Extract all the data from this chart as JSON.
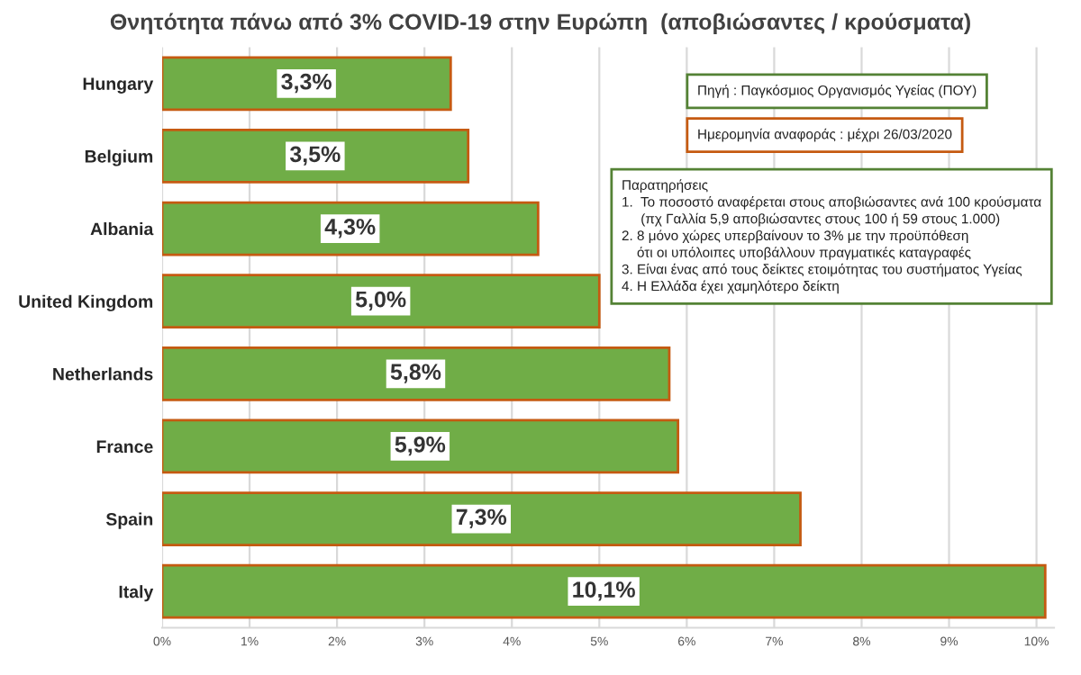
{
  "chart_data": {
    "type": "bar",
    "orientation": "horizontal",
    "title": "Θνητότητα πάνω από 3% COVID-19 στην Ευρώπη  (αποβιώσαντες / κρούσματα)",
    "categories": [
      "Hungary",
      "Belgium",
      "Albania",
      "United Kingdom",
      "Netherlands",
      "France",
      "Spain",
      "Italy"
    ],
    "values": [
      3.3,
      3.5,
      4.3,
      5.0,
      5.8,
      5.9,
      7.3,
      10.1
    ],
    "value_labels": [
      "3,3%",
      "3,5%",
      "4,3%",
      "5,0%",
      "5,8%",
      "5,9%",
      "7,3%",
      "10,1%"
    ],
    "color": "#70ad47",
    "xlim": [
      0,
      10.2
    ],
    "xticks": [
      {
        "value": 0,
        "label": "0%"
      },
      {
        "value": 1,
        "label": "1%"
      },
      {
        "value": 2,
        "label": "2%"
      },
      {
        "value": 3,
        "label": "3%"
      },
      {
        "value": 4,
        "label": "4%"
      },
      {
        "value": 5,
        "label": "5%"
      },
      {
        "value": 6,
        "label": "6%"
      },
      {
        "value": 7,
        "label": "7%"
      },
      {
        "value": 8,
        "label": "8%"
      },
      {
        "value": 9,
        "label": "9%"
      },
      {
        "value": 10,
        "label": "10%"
      }
    ],
    "grid": "x",
    "annotations": [
      "Πηγή : Παγκόσμιος Οργανισμός Υγείας (ΠΟΥ)",
      "Ημερομηνία αναφοράς : μέχρι 26/03/2020",
      "Παρατηρήσεις\n1.  Το ποσοστό αναφέρεται στους αποβιώσαντες ανά 100 κρούσματα\n     (πχ Γαλλία 5,9 αποβιώσαντες στους 100 ή 59 στους 1.000)\n2. 8 μόνο χώρες υπερβαίνουν το 3% με την προϋπόθεση\n    ότι οι υπόλοιπες υποβάλλουν πραγματικές καταγραφές\n3. Είναι ένας από τους δείκτες ετοιμότητας του συστήματος Υγείας\n4. Η Ελλάδα έχει χαμηλότερο δείκτη"
    ]
  }
}
